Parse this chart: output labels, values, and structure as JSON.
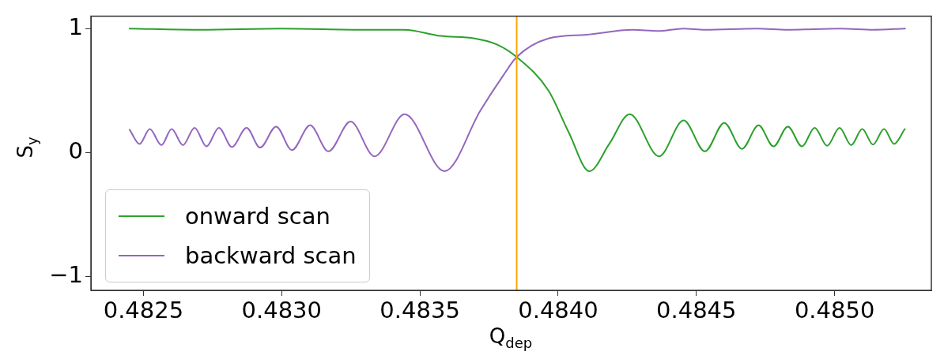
{
  "chart_data": {
    "type": "line",
    "xlabel": "Q$_{dep}$",
    "ylabel": "S$_{y}$",
    "xlim": [
      0.48231,
      0.48535
    ],
    "ylim": [
      -1.11,
      1.1
    ],
    "xticks": [
      {
        "value": 0.4825,
        "label": "0.4825"
      },
      {
        "value": 0.483,
        "label": "0.4830"
      },
      {
        "value": 0.4835,
        "label": "0.4835"
      },
      {
        "value": 0.484,
        "label": "0.4840"
      },
      {
        "value": 0.4845,
        "label": "0.4845"
      },
      {
        "value": 0.485,
        "label": "0.4850"
      }
    ],
    "yticks": [
      {
        "value": -1,
        "label": "−1"
      },
      {
        "value": 0,
        "label": "0"
      },
      {
        "value": 1,
        "label": "1"
      }
    ],
    "grid": false,
    "legend": "bottom left",
    "marker": "none",
    "line_style": "solid",
    "ref_lines": [
      {
        "axis": "x",
        "value": 0.48385,
        "color": "#ffa500"
      }
    ],
    "series": [
      {
        "name": "onward scan",
        "color": "#2ca02c",
        "x": [
          0.48245,
          0.4827,
          0.483,
          0.4833,
          0.483443,
          0.483575,
          0.483698,
          0.48378,
          0.48385,
          0.483965,
          0.484039,
          0.484113,
          0.484185,
          0.484259,
          0.484365,
          0.484454,
          0.484531,
          0.484601,
          0.484665,
          0.484725,
          0.484779,
          0.484831,
          0.484882,
          0.484928,
          0.484973,
          0.485018,
          0.48506,
          0.4851,
          0.485139,
          0.485179,
          0.485215,
          0.485254
        ],
        "values": [
          1.0,
          0.99,
          1.0,
          0.99,
          0.99,
          0.94,
          0.92,
          0.87,
          0.77,
          0.5,
          0.16,
          -0.15,
          0.07,
          0.31,
          -0.03,
          0.26,
          0.01,
          0.24,
          0.03,
          0.22,
          0.05,
          0.21,
          0.05,
          0.2,
          0.055,
          0.2,
          0.06,
          0.19,
          0.065,
          0.19,
          0.07,
          0.19
        ]
      },
      {
        "name": "backward scan",
        "color": "#9467bd",
        "x": [
          0.48245,
          0.482486,
          0.482523,
          0.482565,
          0.482602,
          0.482643,
          0.482685,
          0.482728,
          0.482773,
          0.48282,
          0.482873,
          0.482922,
          0.48298,
          0.483037,
          0.483103,
          0.483169,
          0.483249,
          0.483336,
          0.483445,
          0.483589,
          0.483719,
          0.483801,
          0.48385,
          0.483965,
          0.484102,
          0.484269,
          0.484362,
          0.484453,
          0.484531,
          0.48472,
          0.48483,
          0.48502,
          0.48514,
          0.485255
        ],
        "values": [
          0.185,
          0.07,
          0.19,
          0.06,
          0.19,
          0.06,
          0.2,
          0.05,
          0.2,
          0.045,
          0.2,
          0.04,
          0.21,
          0.02,
          0.22,
          0.01,
          0.25,
          -0.03,
          0.31,
          -0.15,
          0.34,
          0.62,
          0.77,
          0.92,
          0.95,
          0.99,
          0.98,
          1.0,
          0.99,
          1.0,
          0.99,
          1.0,
          0.99,
          1.0
        ]
      }
    ]
  }
}
